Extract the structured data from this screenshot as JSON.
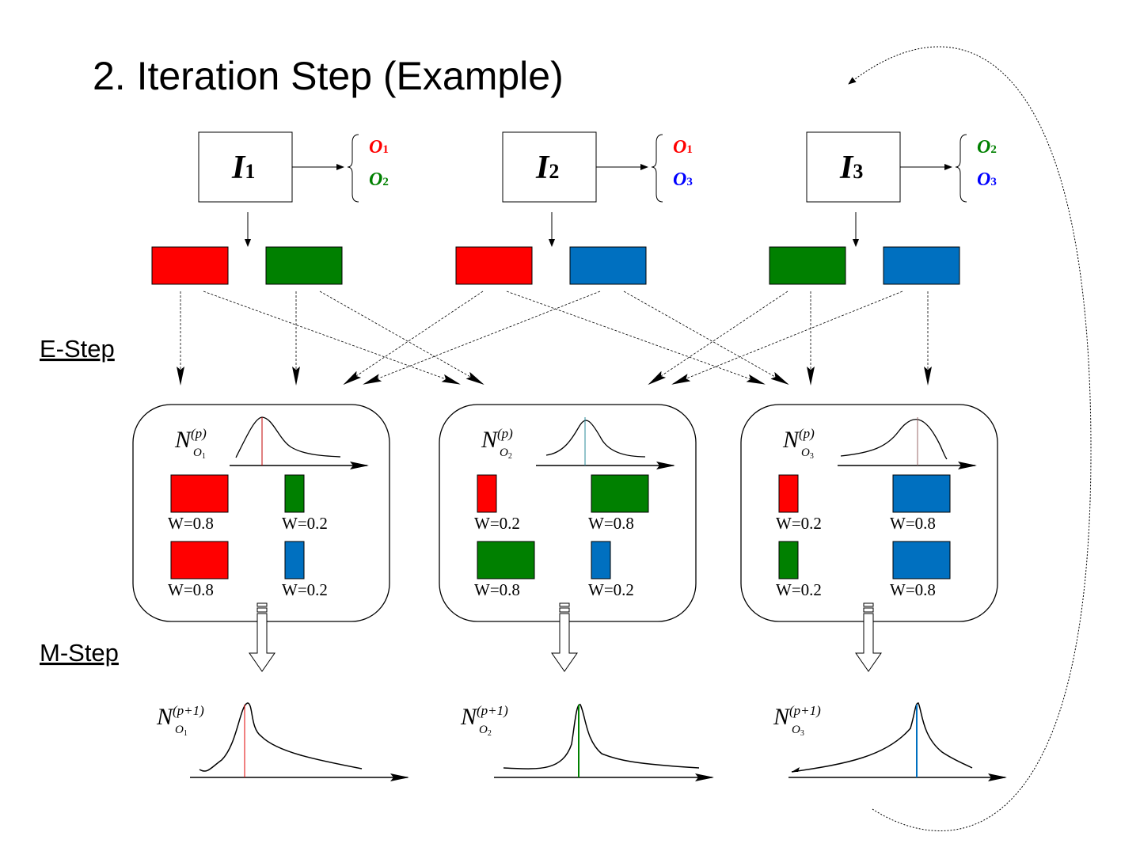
{
  "title": "2. Iteration Step (Example)",
  "steps": {
    "e_step": "E-Step",
    "m_step": "M-Step"
  },
  "colors": {
    "O1": "#ff0000",
    "O2": "#008000",
    "O3": "#0070c0"
  },
  "images": [
    {
      "label": "I",
      "sub": "1",
      "objects": [
        {
          "name": "O",
          "sub": "1",
          "color": "#ff0000"
        },
        {
          "name": "O",
          "sub": "2",
          "color": "#008000"
        }
      ],
      "rects": [
        "#ff0000",
        "#008000"
      ]
    },
    {
      "label": "I",
      "sub": "2",
      "objects": [
        {
          "name": "O",
          "sub": "1",
          "color": "#ff0000"
        },
        {
          "name": "O",
          "sub": "3",
          "color": "#0000ff"
        }
      ],
      "rects": [
        "#ff0000",
        "#0070c0"
      ]
    },
    {
      "label": "I",
      "sub": "3",
      "objects": [
        {
          "name": "O",
          "sub": "2",
          "color": "#008000"
        },
        {
          "name": "O",
          "sub": "3",
          "color": "#0000ff"
        }
      ],
      "rects": [
        "#008000",
        "#0070c0"
      ]
    }
  ],
  "models": [
    {
      "N": "N",
      "sup": "(p)",
      "sub_o": "O",
      "sub_n": "1",
      "line_color": "#c00000",
      "weights": [
        [
          {
            "label": "W=0.8",
            "value": 0.8,
            "color": "#ff0000"
          },
          {
            "label": "W=0.2",
            "value": 0.2,
            "color": "#008000"
          }
        ],
        [
          {
            "label": "W=0.8",
            "value": 0.8,
            "color": "#ff0000"
          },
          {
            "label": "W=0.2",
            "value": 0.2,
            "color": "#0070c0"
          }
        ]
      ],
      "next": {
        "N": "N",
        "sup": "(p+1)",
        "sub_o": "O",
        "sub_n": "1",
        "line_color": "#e00000"
      }
    },
    {
      "N": "N",
      "sup": "(p)",
      "sub_o": "O",
      "sub_n": "2",
      "line_color": "#2a8a9a",
      "weights": [
        [
          {
            "label": "W=0.2",
            "value": 0.2,
            "color": "#ff0000"
          },
          {
            "label": "W=0.8",
            "value": 0.8,
            "color": "#008000"
          }
        ],
        [
          {
            "label": "W=0.8",
            "value": 0.8,
            "color": "#008000"
          },
          {
            "label": "W=0.2",
            "value": 0.2,
            "color": "#0070c0"
          }
        ]
      ],
      "next": {
        "N": "N",
        "sup": "(p+1)",
        "sub_o": "O",
        "sub_n": "2",
        "line_color": "#008000"
      }
    },
    {
      "N": "N",
      "sup": "(p)",
      "sub_o": "O",
      "sub_n": "3",
      "line_color": "#9a6a6a",
      "weights": [
        [
          {
            "label": "W=0.2",
            "value": 0.2,
            "color": "#ff0000"
          },
          {
            "label": "W=0.8",
            "value": 0.8,
            "color": "#0070c0"
          }
        ],
        [
          {
            "label": "W=0.2",
            "value": 0.2,
            "color": "#008000"
          },
          {
            "label": "W=0.8",
            "value": 0.8,
            "color": "#0070c0"
          }
        ]
      ],
      "next": {
        "N": "N",
        "sup": "(p+1)",
        "sub_o": "O",
        "sub_n": "3",
        "line_color": "#0070c0"
      }
    }
  ]
}
